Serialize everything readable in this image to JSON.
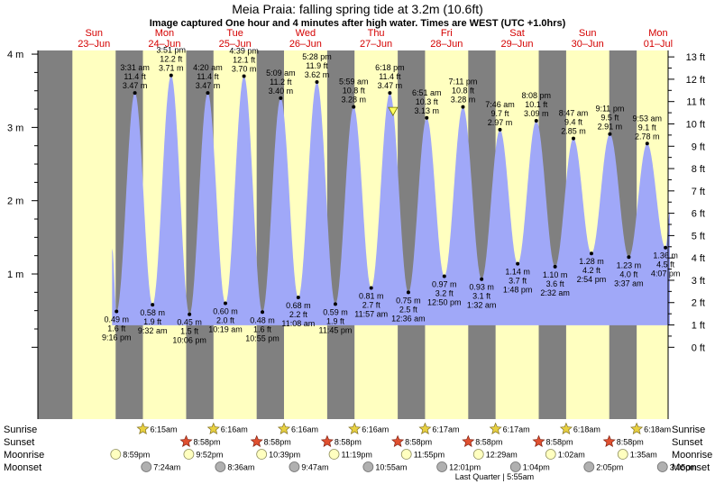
{
  "title": "Meia Praia: falling  spring tide at 3.2m (10.6ft)",
  "subtitle": "Image captured One hour and 4 minutes after high water. Times are WEST (UTC +1.0hrs)",
  "colors": {
    "night": "#808080",
    "day": "#ffffc0",
    "tide": "#a0a8f8",
    "day_label": "#d40000"
  },
  "chart_data": {
    "type": "area",
    "x_unit": "hours from 00:00 Sun 23-Jun (WEST)",
    "days": [
      {
        "name": "Sun",
        "date": "23–Jun"
      },
      {
        "name": "Mon",
        "date": "24–Jun"
      },
      {
        "name": "Tue",
        "date": "25–Jun"
      },
      {
        "name": "Wed",
        "date": "26–Jun"
      },
      {
        "name": "Thu",
        "date": "27–Jun"
      },
      {
        "name": "Fri",
        "date": "28–Jun"
      },
      {
        "name": "Sat",
        "date": "29–Jun"
      },
      {
        "name": "Sun",
        "date": "30–Jun"
      },
      {
        "name": "Mon",
        "date": "01–Jul"
      }
    ],
    "x_range_hours": [
      -5.5,
      209
    ],
    "y_range_m": [
      -0.98,
      4.05
    ],
    "y_ticks_m": [
      "1 m",
      "2 m",
      "3 m",
      "4 m"
    ],
    "y_ticks_ft": [
      "0 ft",
      "1 ft",
      "2 ft",
      "3 ft",
      "4 ft",
      "5 ft",
      "6 ft",
      "7 ft",
      "8 ft",
      "9 ft",
      "10 ft",
      "11 ft",
      "12 ft",
      "13 ft"
    ],
    "sun_hours": [
      {
        "rise": 6.25,
        "set": 20.97
      },
      {
        "rise": 6.25,
        "set": 20.97
      },
      {
        "rise": 6.27,
        "set": 20.97
      },
      {
        "rise": 6.27,
        "set": 20.97
      },
      {
        "rise": 6.27,
        "set": 20.97
      },
      {
        "rise": 6.28,
        "set": 20.97
      },
      {
        "rise": 6.28,
        "set": 20.97
      },
      {
        "rise": 6.3,
        "set": 20.97
      },
      {
        "rise": 6.3,
        "set": 20.97
      }
    ],
    "tide_start_m": 1.35,
    "tide_end_m": 1.85,
    "extremes": [
      {
        "hour": 21.27,
        "height": 0.49,
        "type": "low",
        "time": "9:16 pm",
        "m": "0.49 m",
        "ft": "1.6 ft"
      },
      {
        "hour": 27.52,
        "height": 3.47,
        "type": "high",
        "time": "3:31 am",
        "m": "3.47 m",
        "ft": "11.4 ft"
      },
      {
        "hour": 33.53,
        "height": 0.58,
        "type": "low",
        "time": "9:32 am",
        "m": "0.58 m",
        "ft": "1.9 ft"
      },
      {
        "hour": 39.85,
        "height": 3.71,
        "type": "high",
        "time": "3:51 pm",
        "m": "3.71 m",
        "ft": "12.2 ft"
      },
      {
        "hour": 46.1,
        "height": 0.45,
        "type": "low",
        "time": "10:06 pm",
        "m": "0.45 m",
        "ft": "1.5 ft"
      },
      {
        "hour": 52.33,
        "height": 3.47,
        "type": "high",
        "time": "4:20 am",
        "m": "3.47 m",
        "ft": "11.4 ft"
      },
      {
        "hour": 58.32,
        "height": 0.6,
        "type": "low",
        "time": "10:19 am",
        "m": "0.60 m",
        "ft": "2.0 ft"
      },
      {
        "hour": 64.65,
        "height": 3.7,
        "type": "high",
        "time": "4:39 pm",
        "m": "3.70 m",
        "ft": "12.1 ft"
      },
      {
        "hour": 70.92,
        "height": 0.48,
        "type": "low",
        "time": "10:55 pm",
        "m": "0.48 m",
        "ft": "1.6 ft"
      },
      {
        "hour": 77.15,
        "height": 3.4,
        "type": "high",
        "time": "5:09 am",
        "m": "3.40 m",
        "ft": "11.2 ft"
      },
      {
        "hour": 83.13,
        "height": 0.68,
        "type": "low",
        "time": "11:08 am",
        "m": "0.68 m",
        "ft": "2.2 ft"
      },
      {
        "hour": 89.47,
        "height": 3.62,
        "type": "high",
        "time": "5:28 pm",
        "m": "3.62 m",
        "ft": "11.9 ft"
      },
      {
        "hour": 95.75,
        "height": 0.59,
        "type": "low",
        "time": "11:45 pm",
        "m": "0.59 m",
        "ft": "1.9 ft"
      },
      {
        "hour": 101.98,
        "height": 3.28,
        "type": "high",
        "time": "5:59 am",
        "m": "3.28 m",
        "ft": "10.8 ft"
      },
      {
        "hour": 107.95,
        "height": 0.81,
        "type": "low",
        "time": "11:57 am",
        "m": "0.81 m",
        "ft": "2.7 ft"
      },
      {
        "hour": 114.3,
        "height": 3.47,
        "type": "high",
        "time": "6:18 pm",
        "m": "3.47 m",
        "ft": "11.4 ft"
      },
      {
        "hour": 120.6,
        "height": 0.75,
        "type": "low",
        "time": "12:36 am",
        "m": "0.75 m",
        "ft": "2.5 ft"
      },
      {
        "hour": 126.85,
        "height": 3.13,
        "type": "high",
        "time": "6:51 am",
        "m": "3.13 m",
        "ft": "10.3 ft"
      },
      {
        "hour": 132.83,
        "height": 0.97,
        "type": "low",
        "time": "12:50 pm",
        "m": "0.97 m",
        "ft": "3.2 ft"
      },
      {
        "hour": 139.18,
        "height": 3.28,
        "type": "high",
        "time": "7:11 pm",
        "m": "3.28 m",
        "ft": "10.8 ft"
      },
      {
        "hour": 145.53,
        "height": 0.93,
        "type": "low",
        "time": "1:32 am",
        "m": "0.93 m",
        "ft": "3.1 ft"
      },
      {
        "hour": 151.77,
        "height": 2.97,
        "type": "high",
        "time": "7:46 am",
        "m": "2.97 m",
        "ft": "9.7 ft"
      },
      {
        "hour": 157.8,
        "height": 1.14,
        "type": "low",
        "time": "1:48 pm",
        "m": "1.14 m",
        "ft": "3.7 ft"
      },
      {
        "hour": 164.13,
        "height": 3.09,
        "type": "high",
        "time": "8:08 pm",
        "m": "3.09 m",
        "ft": "10.1 ft"
      },
      {
        "hour": 170.53,
        "height": 1.1,
        "type": "low",
        "time": "2:32 am",
        "m": "1.10 m",
        "ft": "3.6 ft"
      },
      {
        "hour": 176.78,
        "height": 2.85,
        "type": "high",
        "time": "8:47 am",
        "m": "2.85 m",
        "ft": "9.4 ft"
      },
      {
        "hour": 182.9,
        "height": 1.28,
        "type": "low",
        "time": "2:54 pm",
        "m": "1.28 m",
        "ft": "4.2 ft"
      },
      {
        "hour": 189.18,
        "height": 2.91,
        "type": "high",
        "time": "9:11 pm",
        "m": "2.91 m",
        "ft": "9.5 ft"
      },
      {
        "hour": 195.62,
        "height": 1.23,
        "type": "low",
        "time": "3:37 am",
        "m": "1.23 m",
        "ft": "4.0 ft"
      },
      {
        "hour": 201.88,
        "height": 2.78,
        "type": "high",
        "time": "9:53 am",
        "m": "2.78 m",
        "ft": "9.1 ft"
      },
      {
        "hour": 208.12,
        "height": 1.36,
        "type": "low",
        "time": "4:07 pm",
        "m": "1.36 m",
        "ft": "4.5 ft"
      }
    ],
    "marker": {
      "hour": 115.37,
      "height": 3.2
    },
    "rows": [
      "Sunrise",
      "Sunset",
      "Moonrise",
      "Moonset"
    ],
    "sunrise": [
      {
        "hour": 30.25,
        "label": "6:15am"
      },
      {
        "hour": 54.27,
        "label": "6:16am"
      },
      {
        "hour": 78.27,
        "label": "6:16am"
      },
      {
        "hour": 102.27,
        "label": "6:16am"
      },
      {
        "hour": 126.28,
        "label": "6:17am"
      },
      {
        "hour": 150.28,
        "label": "6:17am"
      },
      {
        "hour": 174.3,
        "label": "6:18am"
      },
      {
        "hour": 198.3,
        "label": "6:18am"
      }
    ],
    "sunset": [
      {
        "hour": 44.97,
        "label": "8:58pm"
      },
      {
        "hour": 68.97,
        "label": "8:58pm"
      },
      {
        "hour": 92.97,
        "label": "8:58pm"
      },
      {
        "hour": 116.97,
        "label": "8:58pm"
      },
      {
        "hour": 140.97,
        "label": "8:58pm"
      },
      {
        "hour": 164.97,
        "label": "8:58pm"
      },
      {
        "hour": 188.97,
        "label": "8:58pm"
      }
    ],
    "moonrise": [
      {
        "hour": 20.98,
        "label": "8:59pm"
      },
      {
        "hour": 45.87,
        "label": "9:52pm"
      },
      {
        "hour": 70.65,
        "label": "10:39pm"
      },
      {
        "hour": 95.32,
        "label": "11:19pm"
      },
      {
        "hour": 119.92,
        "label": "11:55pm"
      },
      {
        "hour": 144.48,
        "label": "12:29am"
      },
      {
        "hour": 169.03,
        "label": "1:02am"
      },
      {
        "hour": 193.58,
        "label": "1:35am"
      }
    ],
    "moonset": [
      {
        "hour": 31.4,
        "label": "7:24am"
      },
      {
        "hour": 56.6,
        "label": "8:36am"
      },
      {
        "hour": 81.78,
        "label": "9:47am"
      },
      {
        "hour": 106.92,
        "label": "10:55am"
      },
      {
        "hour": 132.02,
        "label": "12:01pm"
      },
      {
        "hour": 157.07,
        "label": "1:04pm"
      },
      {
        "hour": 182.08,
        "label": "2:05pm"
      },
      {
        "hour": 207.08,
        "label": "3:05pm"
      }
    ],
    "moon_phase": {
      "hour": 149.92,
      "label": "Last Quarter | 5:55am"
    }
  }
}
